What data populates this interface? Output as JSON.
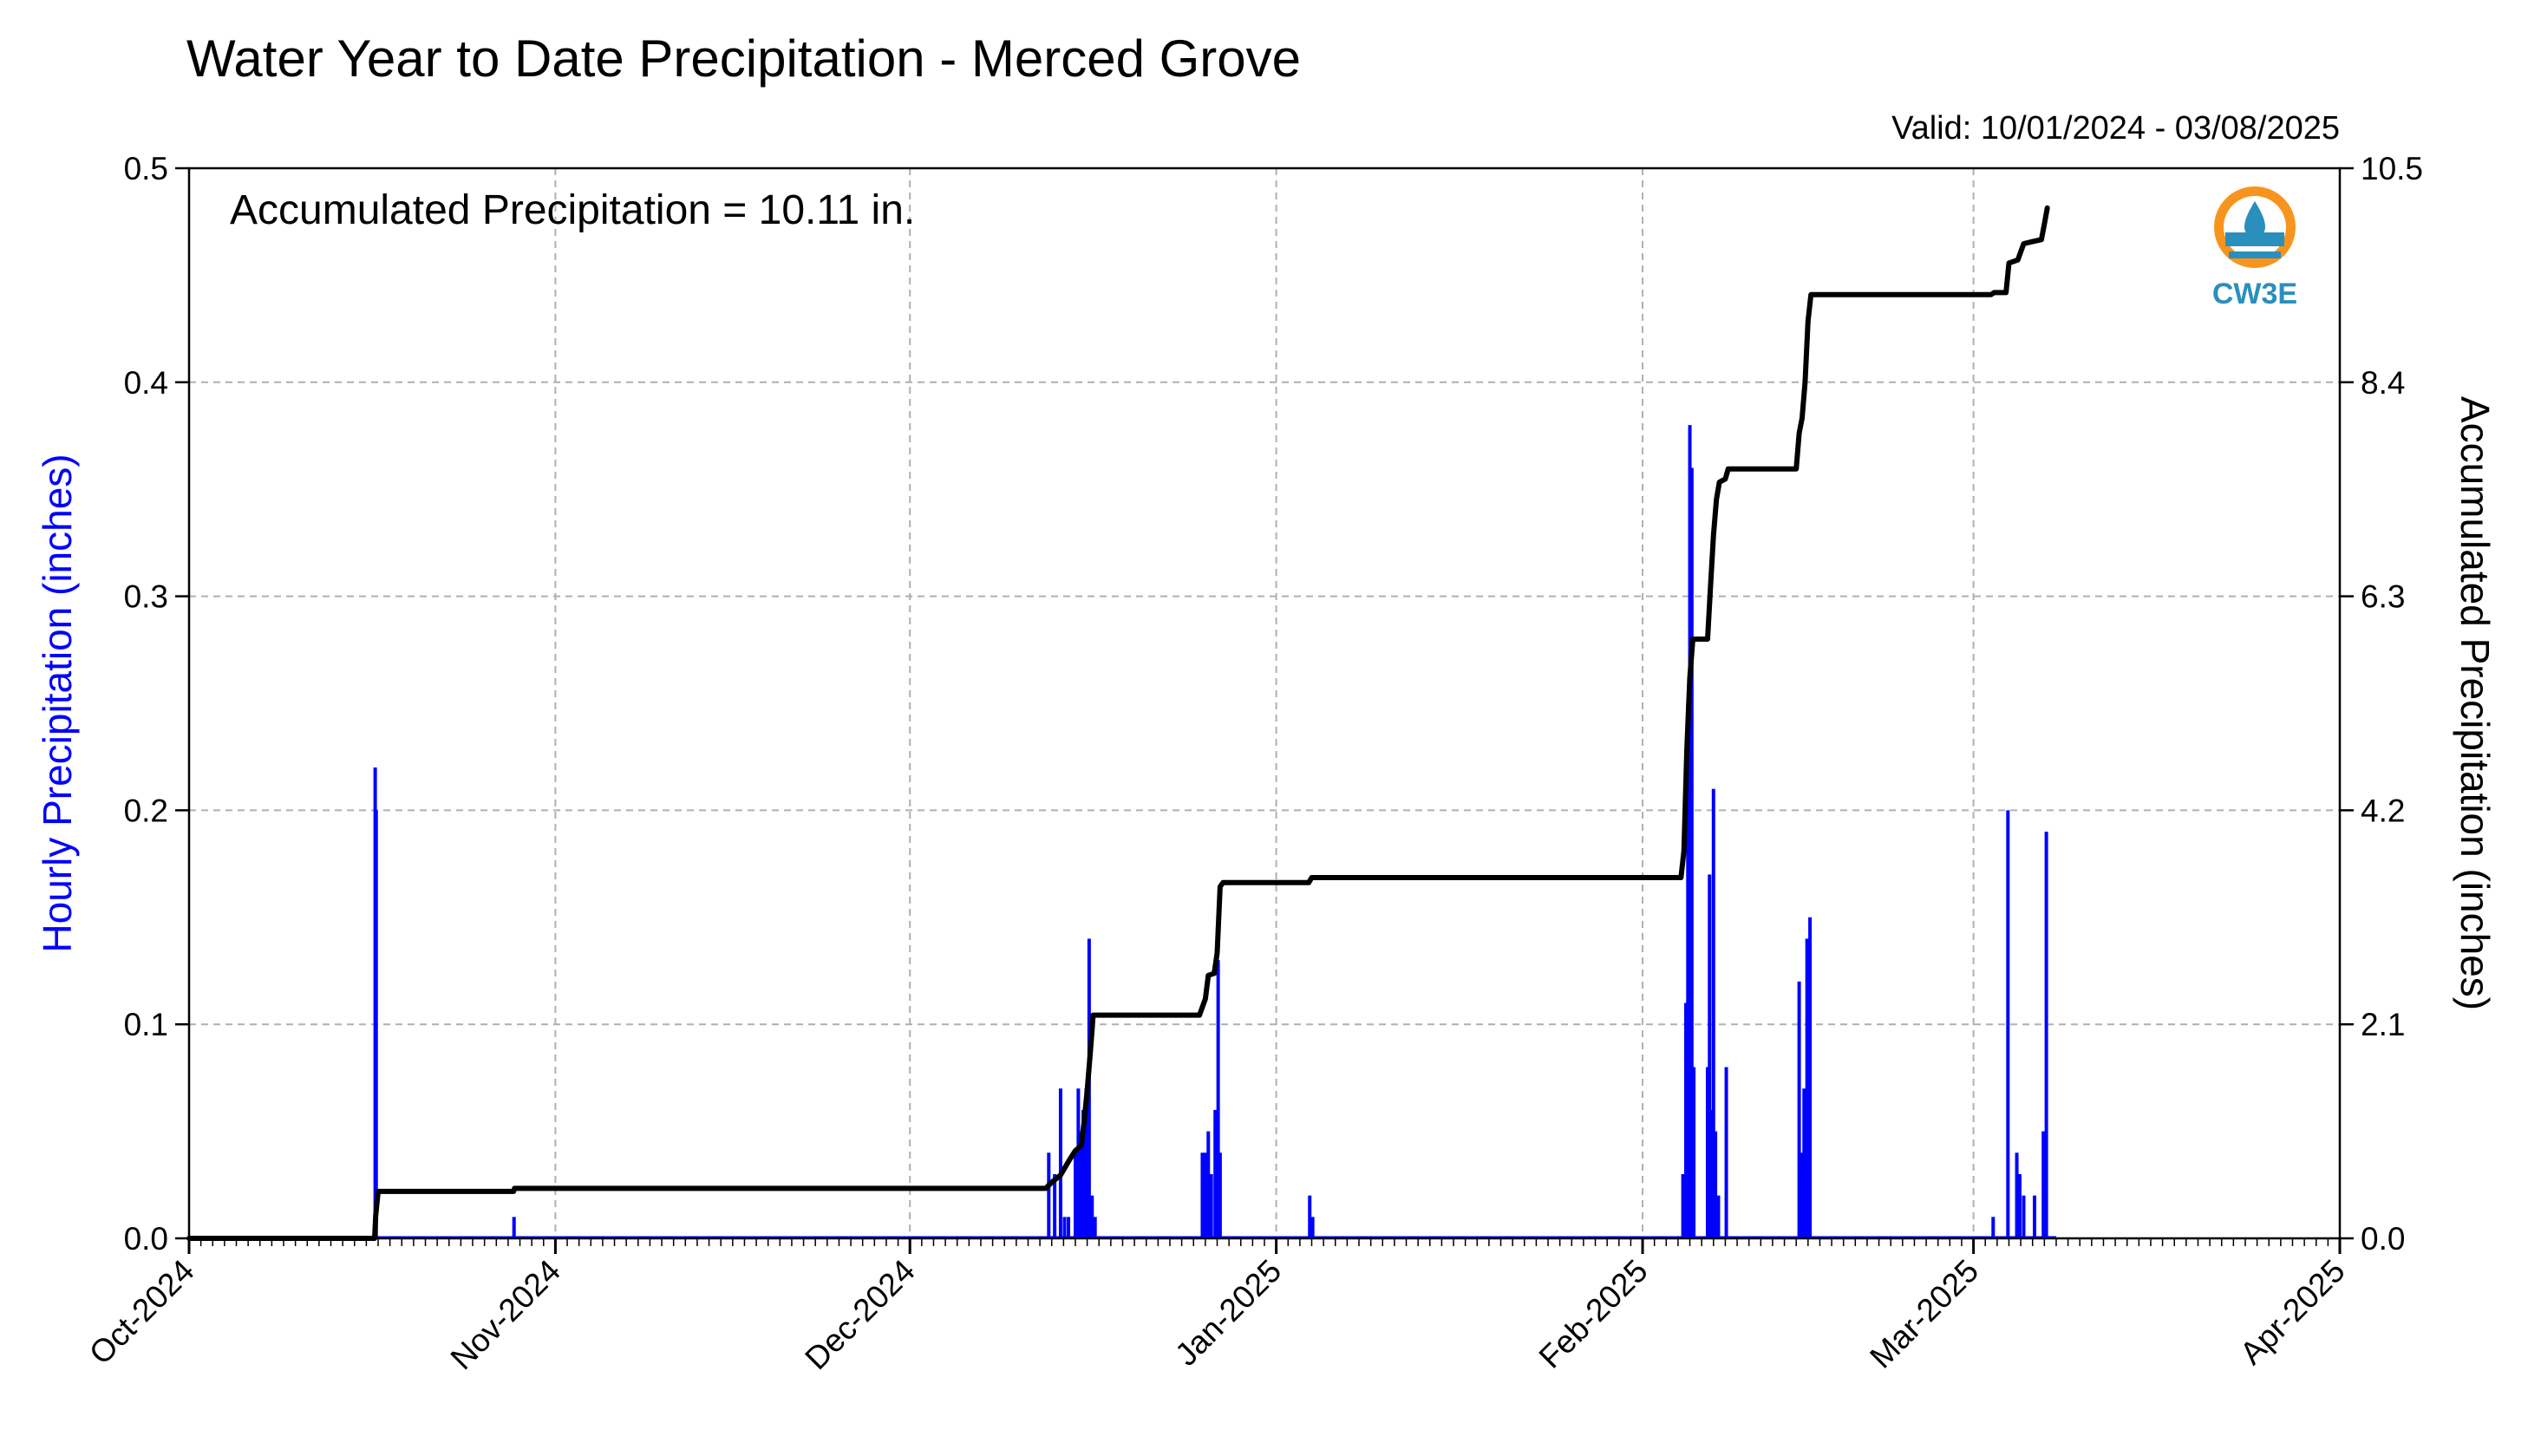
{
  "chart_data": {
    "type": "bar+line",
    "title": "Water Year to Date Precipitation - Merced Grove",
    "valid_text": "Valid: 10/01/2024 - 03/08/2025",
    "annotation": "Accumulated Precipitation = 10.11 in.",
    "logo_text": "CW3E",
    "xlabel": "",
    "ylabel_left": "Hourly Precipitation (inches)",
    "ylabel_right": "Accumulated Precipitation (inches)",
    "x_range": [
      "2024-10-01",
      "2025-04-01"
    ],
    "x_ticks": [
      "2024-10-01",
      "2024-11-01",
      "2024-12-01",
      "2025-01-01",
      "2025-02-01",
      "2025-03-01",
      "2025-04-01"
    ],
    "x_tick_labels": [
      "Oct-2024",
      "Nov-2024",
      "Dec-2024",
      "Jan-2025",
      "Feb-2025",
      "Mar-2025",
      "Apr-2025"
    ],
    "ylim_left": [
      0,
      0.5
    ],
    "yticks_left": [
      "0.0",
      "0.1",
      "0.2",
      "0.3",
      "0.4",
      "0.5"
    ],
    "ylim_right": [
      0,
      10.5
    ],
    "yticks_right": [
      "0.0",
      "2.1",
      "4.2",
      "6.3",
      "8.4",
      "10.5"
    ],
    "grid": true,
    "colors": {
      "hourly": "#0000ff",
      "accumulated": "#000000",
      "grid": "#b0b0b0"
    },
    "hourly_series": {
      "name": "Hourly Precipitation",
      "points": [
        [
          "2024-10-16 18:00",
          0.22
        ],
        [
          "2024-10-16 20:00",
          0.2
        ],
        [
          "2024-10-28 12:00",
          0.01
        ],
        [
          "2024-12-12 18:00",
          0.04
        ],
        [
          "2024-12-13 06:00",
          0.03
        ],
        [
          "2024-12-13 18:00",
          0.07
        ],
        [
          "2024-12-14 02:00",
          0.01
        ],
        [
          "2024-12-14 10:00",
          0.01
        ],
        [
          "2024-12-15 00:00",
          0.04
        ],
        [
          "2024-12-15 06:00",
          0.07
        ],
        [
          "2024-12-15 10:00",
          0.05
        ],
        [
          "2024-12-15 16:00",
          0.06
        ],
        [
          "2024-12-15 22:00",
          0.07
        ],
        [
          "2024-12-16 04:00",
          0.14
        ],
        [
          "2024-12-16 10:00",
          0.02
        ],
        [
          "2024-12-16 16:00",
          0.01
        ],
        [
          "2024-12-25 18:00",
          0.04
        ],
        [
          "2024-12-26 00:00",
          0.04
        ],
        [
          "2024-12-26 06:00",
          0.05
        ],
        [
          "2024-12-26 12:00",
          0.03
        ],
        [
          "2024-12-26 20:00",
          0.06
        ],
        [
          "2024-12-27 02:00",
          0.13
        ],
        [
          "2024-12-27 06:00",
          0.04
        ],
        [
          "2025-01-03 20:00",
          0.02
        ],
        [
          "2025-01-04 02:00",
          0.01
        ],
        [
          "2025-02-04 10:00",
          0.03
        ],
        [
          "2025-02-04 16:00",
          0.11
        ],
        [
          "2025-02-04 20:00",
          0.25
        ],
        [
          "2025-02-05 00:00",
          0.38
        ],
        [
          "2025-02-05 04:00",
          0.36
        ],
        [
          "2025-02-05 08:00",
          0.08
        ],
        [
          "2025-02-06 12:00",
          0.08
        ],
        [
          "2025-02-06 16:00",
          0.17
        ],
        [
          "2025-02-06 20:00",
          0.06
        ],
        [
          "2025-02-07 00:00",
          0.21
        ],
        [
          "2025-02-07 04:00",
          0.05
        ],
        [
          "2025-02-07 10:00",
          0.02
        ],
        [
          "2025-02-08 02:00",
          0.08
        ],
        [
          "2025-02-14 06:00",
          0.12
        ],
        [
          "2025-02-14 12:00",
          0.04
        ],
        [
          "2025-02-14 16:00",
          0.07
        ],
        [
          "2025-02-14 22:00",
          0.14
        ],
        [
          "2025-02-15 04:00",
          0.15
        ],
        [
          "2025-03-02 16:00",
          0.01
        ],
        [
          "2025-03-03 22:00",
          0.2
        ],
        [
          "2025-03-04 16:00",
          0.04
        ],
        [
          "2025-03-04 22:00",
          0.03
        ],
        [
          "2025-03-05 06:00",
          0.02
        ],
        [
          "2025-03-06 04:00",
          0.02
        ],
        [
          "2025-03-06 22:00",
          0.05
        ],
        [
          "2025-03-07 04:00",
          0.19
        ]
      ]
    },
    "accumulated_series": {
      "name": "Accumulated Precipitation",
      "points": [
        [
          "2024-10-01 00:00",
          0.0
        ],
        [
          "2024-10-16 17:00",
          0.0
        ],
        [
          "2024-10-16 19:00",
          0.22
        ],
        [
          "2024-10-17 00:00",
          0.46
        ],
        [
          "2024-10-28 11:00",
          0.46
        ],
        [
          "2024-10-28 13:00",
          0.49
        ],
        [
          "2024-12-12 12:00",
          0.49
        ],
        [
          "2024-12-13 00:00",
          0.55
        ],
        [
          "2024-12-13 18:00",
          0.62
        ],
        [
          "2024-12-14 12:00",
          0.77
        ],
        [
          "2024-12-15 00:00",
          0.86
        ],
        [
          "2024-12-15 12:00",
          0.91
        ],
        [
          "2024-12-15 18:00",
          1.15
        ],
        [
          "2024-12-16 00:00",
          1.45
        ],
        [
          "2024-12-16 06:00",
          1.8
        ],
        [
          "2024-12-16 10:00",
          2.05
        ],
        [
          "2024-12-16 12:00",
          2.19
        ],
        [
          "2024-12-25 12:00",
          2.19
        ],
        [
          "2024-12-26 00:00",
          2.35
        ],
        [
          "2024-12-26 06:00",
          2.58
        ],
        [
          "2024-12-26 18:00",
          2.6
        ],
        [
          "2024-12-27 00:00",
          2.8
        ],
        [
          "2024-12-27 06:00",
          3.45
        ],
        [
          "2024-12-27 12:00",
          3.49
        ],
        [
          "2025-01-03 18:00",
          3.49
        ],
        [
          "2025-01-04 00:00",
          3.54
        ],
        [
          "2025-02-04 06:00",
          3.54
        ],
        [
          "2025-02-04 12:00",
          3.8
        ],
        [
          "2025-02-04 18:00",
          4.8
        ],
        [
          "2025-02-05 00:00",
          5.5
        ],
        [
          "2025-02-05 06:00",
          5.88
        ],
        [
          "2025-02-06 12:00",
          5.88
        ],
        [
          "2025-02-06 18:00",
          6.4
        ],
        [
          "2025-02-07 00:00",
          6.9
        ],
        [
          "2025-02-07 06:00",
          7.25
        ],
        [
          "2025-02-07 12:00",
          7.42
        ],
        [
          "2025-02-08 00:00",
          7.45
        ],
        [
          "2025-02-08 06:00",
          7.55
        ],
        [
          "2025-02-14 00:00",
          7.55
        ],
        [
          "2025-02-14 06:00",
          7.9
        ],
        [
          "2025-02-14 12:00",
          8.05
        ],
        [
          "2025-02-14 18:00",
          8.4
        ],
        [
          "2025-02-15 00:00",
          9.0
        ],
        [
          "2025-02-15 06:00",
          9.26
        ],
        [
          "2025-03-02 12:00",
          9.26
        ],
        [
          "2025-03-02 18:00",
          9.28
        ],
        [
          "2025-03-03 18:00",
          9.28
        ],
        [
          "2025-03-04 00:00",
          9.57
        ],
        [
          "2025-03-04 18:00",
          9.6
        ],
        [
          "2025-03-05 06:00",
          9.76
        ],
        [
          "2025-03-06 00:00",
          9.78
        ],
        [
          "2025-03-06 18:00",
          9.8
        ],
        [
          "2025-03-07 00:00",
          9.95
        ],
        [
          "2025-03-07 06:00",
          10.11
        ]
      ]
    }
  }
}
